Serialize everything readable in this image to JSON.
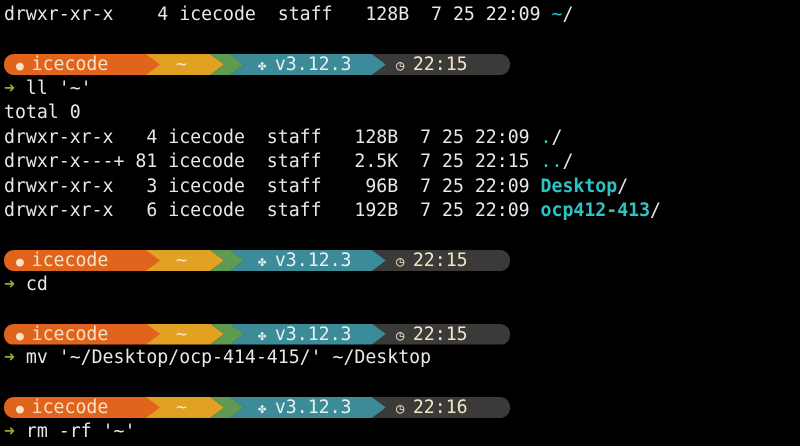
{
  "colors": {
    "user": "#e0641c",
    "dir": "#e1a224",
    "git": "#5e9a52",
    "python": "#3b8c98",
    "time": "#3c3a38",
    "directory_name": "#2ec4c4",
    "prompt_arrow": "#9aa832"
  },
  "prompt_icons": {
    "user": "apple-icon",
    "python": "python-icon",
    "time": "clock-icon",
    "input": "arrow-right-icon"
  },
  "first_line": {
    "text": "drwxr-xr-x    4 icecode  staff   128B  7 25 22:09 ",
    "name": "~",
    "slash": "/"
  },
  "blocks": [
    {
      "prompt": {
        "user": "icecode",
        "dir": "~",
        "python": "v3.12.3",
        "time": "22:15"
      },
      "command": "ll '~'",
      "output": [
        "total 0"
      ],
      "listing": [
        {
          "text": "drwxr-xr-x   4 icecode  staff   128B  7 25 22:09 ",
          "name": ".",
          "slash": "/"
        },
        {
          "text": "drwxr-x---+ 81 icecode  staff   2.5K  7 25 22:15 ",
          "name": "..",
          "slash": "/"
        },
        {
          "text": "drwxr-xr-x   3 icecode  staff    96B  7 25 22:09 ",
          "name": "Desktop",
          "slash": "/"
        },
        {
          "text": "drwxr-xr-x   6 icecode  staff   192B  7 25 22:09 ",
          "name": "ocp412-413",
          "slash": "/"
        }
      ]
    },
    {
      "prompt": {
        "user": "icecode",
        "dir": "~",
        "python": "v3.12.3",
        "time": "22:15"
      },
      "command": "cd"
    },
    {
      "prompt": {
        "user": "icecode",
        "dir": "~",
        "python": "v3.12.3",
        "time": "22:15"
      },
      "command": "mv '~/Desktop/ocp-414-415/' ~/Desktop"
    },
    {
      "prompt": {
        "user": "icecode",
        "dir": "~",
        "python": "v3.12.3",
        "time": "22:16"
      },
      "command": "rm -rf '~'"
    }
  ]
}
